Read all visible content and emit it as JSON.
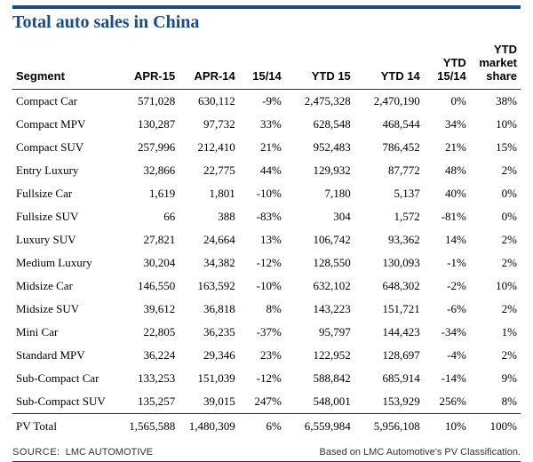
{
  "title": "Total auto sales in China",
  "columns": [
    "Segment",
    "APR-15",
    "APR-14",
    "15/14",
    "YTD 15",
    "YTD 14",
    "YTD 15/14",
    "YTD market share"
  ],
  "header_html": {
    "ytd_1514": "YTD<br>15/14",
    "ytd_ms": "YTD<br>market<br>share"
  },
  "colors": {
    "accent": "#1a4b8c",
    "text": "#111",
    "rule": "#333"
  },
  "rows": [
    {
      "seg": "Compact Car",
      "a15": "571,028",
      "a14": "630,112",
      "r": "-9%",
      "y15": "2,475,328",
      "y14": "2,470,190",
      "ry": "0%",
      "ms": "38%"
    },
    {
      "seg": "Compact MPV",
      "a15": "130,287",
      "a14": "97,732",
      "r": "33%",
      "y15": "628,548",
      "y14": "468,544",
      "ry": "34%",
      "ms": "10%"
    },
    {
      "seg": "Compact SUV",
      "a15": "257,996",
      "a14": "212,410",
      "r": "21%",
      "y15": "952,483",
      "y14": "786,452",
      "ry": "21%",
      "ms": "15%"
    },
    {
      "seg": "Entry Luxury",
      "a15": "32,866",
      "a14": "22,775",
      "r": "44%",
      "y15": "129,932",
      "y14": "87,772",
      "ry": "48%",
      "ms": "2%"
    },
    {
      "seg": "Fullsize Car",
      "a15": "1,619",
      "a14": "1,801",
      "r": "-10%",
      "y15": "7,180",
      "y14": "5,137",
      "ry": "40%",
      "ms": "0%"
    },
    {
      "seg": "Fullsize SUV",
      "a15": "66",
      "a14": "388",
      "r": "-83%",
      "y15": "304",
      "y14": "1,572",
      "ry": "-81%",
      "ms": "0%"
    },
    {
      "seg": "Luxury SUV",
      "a15": "27,821",
      "a14": "24,664",
      "r": "13%",
      "y15": "106,742",
      "y14": "93,362",
      "ry": "14%",
      "ms": "2%"
    },
    {
      "seg": "Medium Luxury",
      "a15": "30,204",
      "a14": "34,382",
      "r": "-12%",
      "y15": "128,550",
      "y14": "130,093",
      "ry": "-1%",
      "ms": "2%"
    },
    {
      "seg": "Midsize Car",
      "a15": "146,550",
      "a14": "163,592",
      "r": "-10%",
      "y15": "632,102",
      "y14": "648,302",
      "ry": "-2%",
      "ms": "10%"
    },
    {
      "seg": "Midsize SUV",
      "a15": "39,612",
      "a14": "36,818",
      "r": "8%",
      "y15": "143,223",
      "y14": "151,721",
      "ry": "-6%",
      "ms": "2%"
    },
    {
      "seg": "Mini Car",
      "a15": "22,805",
      "a14": "36,235",
      "r": "-37%",
      "y15": "95,797",
      "y14": "144,423",
      "ry": "-34%",
      "ms": "1%"
    },
    {
      "seg": "Standard MPV",
      "a15": "36,224",
      "a14": "29,346",
      "r": "23%",
      "y15": "122,952",
      "y14": "128,697",
      "ry": "-4%",
      "ms": "2%"
    },
    {
      "seg": "Sub-Compact Car",
      "a15": "133,253",
      "a14": "151,039",
      "r": "-12%",
      "y15": "588,842",
      "y14": "685,914",
      "ry": "-14%",
      "ms": "9%"
    },
    {
      "seg": "Sub-Compact SUV",
      "a15": "135,257",
      "a14": "39,015",
      "r": "247%",
      "y15": "548,001",
      "y14": "153,929",
      "ry": "256%",
      "ms": "8%"
    }
  ],
  "total": {
    "seg": "PV Total",
    "a15": "1,565,588",
    "a14": "1,480,309",
    "r": "6%",
    "y15": "6,559,984",
    "y14": "5,956,108",
    "ry": "10%",
    "ms": "100%"
  },
  "source_label": "SOURCE:",
  "source_name": "LMC AUTOMOTIVE",
  "footnote": "Based on LMC Automotive's PV Classification."
}
